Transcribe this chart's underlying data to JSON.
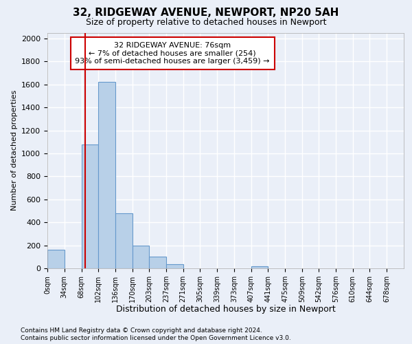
{
  "title_line1": "32, RIDGEWAY AVENUE, NEWPORT, NP20 5AH",
  "title_line2": "Size of property relative to detached houses in Newport",
  "xlabel": "Distribution of detached houses by size in Newport",
  "ylabel": "Number of detached properties",
  "categories": [
    "0sqm",
    "34sqm",
    "68sqm",
    "102sqm",
    "136sqm",
    "170sqm",
    "203sqm",
    "237sqm",
    "271sqm",
    "305sqm",
    "339sqm",
    "373sqm",
    "407sqm",
    "441sqm",
    "475sqm",
    "509sqm",
    "542sqm",
    "576sqm",
    "610sqm",
    "644sqm",
    "678sqm"
  ],
  "bin_edges": [
    0,
    34,
    68,
    102,
    136,
    170,
    203,
    237,
    271,
    305,
    339,
    373,
    407,
    441,
    475,
    509,
    542,
    576,
    610,
    644,
    678,
    712
  ],
  "values": [
    160,
    0,
    1080,
    1620,
    480,
    200,
    100,
    35,
    0,
    0,
    0,
    0,
    20,
    0,
    0,
    0,
    0,
    0,
    0,
    0,
    0
  ],
  "bar_color": "#b8d0e8",
  "bar_edge_color": "#6699cc",
  "marker_x": 76,
  "marker_line_color": "#cc0000",
  "annotation_text": "32 RIDGEWAY AVENUE: 76sqm\n← 7% of detached houses are smaller (254)\n93% of semi-detached houses are larger (3,459) →",
  "annotation_box_color": "#ffffff",
  "annotation_box_edge_color": "#cc0000",
  "ylim": [
    0,
    2050
  ],
  "yticks": [
    0,
    200,
    400,
    600,
    800,
    1000,
    1200,
    1400,
    1600,
    1800,
    2000
  ],
  "xlim": [
    0,
    712
  ],
  "background_color": "#eaeff8",
  "grid_color": "#ffffff",
  "footnote1": "Contains HM Land Registry data © Crown copyright and database right 2024.",
  "footnote2": "Contains public sector information licensed under the Open Government Licence v3.0."
}
